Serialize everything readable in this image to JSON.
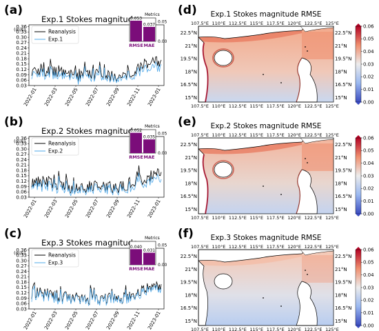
{
  "time_ticks": [
    "2022-01",
    "2022-03",
    "2022-05",
    "2022-07",
    "2022-09",
    "2022-11",
    "2023-01"
  ],
  "y_unit": "(m/s)",
  "y_ticks": [
    0.03,
    0.06,
    0.09,
    0.12,
    0.15,
    0.18,
    0.21,
    0.24,
    0.27,
    0.3,
    0.33,
    0.36
  ],
  "metrics_title": "Metrics",
  "metric_labels": [
    "RMSE",
    "MAE"
  ],
  "inset_ticks": [
    "0.00",
    "0.05"
  ],
  "lon_ticks": [
    "107.5°E",
    "110°E",
    "112.5°E",
    "115°E",
    "117.5°E",
    "120°E",
    "122.5°E",
    "125°E"
  ],
  "lat_ticks": [
    "22.5°N",
    "21°N",
    "19.5°N",
    "18°N",
    "16.5°N",
    "15°N"
  ],
  "colorbar_ticks": [
    "0.06",
    "0.05",
    "0.04",
    "0.03",
    "0.02",
    "0.01",
    "0.00"
  ],
  "colors": {
    "reanalysis": "#000000",
    "experiment": "#4fa8e8",
    "bar": "#7b0d7a",
    "accent_title": "#7b0d7a"
  },
  "chart_data": [
    {
      "panel": "(a)",
      "type": "line",
      "title": "Exp.1 Stokes magnitude",
      "ylabel": "(m/s)",
      "ylim": [
        0.03,
        0.37
      ],
      "x": [
        "2022-01",
        "2022-03",
        "2022-05",
        "2022-07",
        "2022-09",
        "2022-11",
        "2023-01"
      ],
      "series": [
        {
          "name": "Reanalysis",
          "values": [
            0.12,
            0.11,
            0.08,
            0.09,
            0.08,
            0.13,
            0.17
          ]
        },
        {
          "name": "Exp.1",
          "values": [
            0.1,
            0.09,
            0.07,
            0.08,
            0.07,
            0.11,
            0.15
          ]
        }
      ],
      "metrics": {
        "RMSE": 0.053,
        "MAE": 0.037,
        "labels": [
          "0.053",
          "0.037"
        ]
      }
    },
    {
      "panel": "(b)",
      "type": "line",
      "title": "Exp.2 Stokes magnitude",
      "ylabel": "(m/s)",
      "ylim": [
        0.03,
        0.37
      ],
      "x": [
        "2022-01",
        "2022-03",
        "2022-05",
        "2022-07",
        "2022-09",
        "2022-11",
        "2023-01"
      ],
      "series": [
        {
          "name": "Reanalysis",
          "values": [
            0.12,
            0.11,
            0.08,
            0.09,
            0.08,
            0.13,
            0.17
          ]
        },
        {
          "name": "Exp.2",
          "values": [
            0.1,
            0.09,
            0.07,
            0.08,
            0.07,
            0.11,
            0.15
          ]
        }
      ],
      "metrics": {
        "RMSE": 0.052,
        "MAE": 0.035,
        "labels": [
          "0.052",
          "0.035"
        ]
      }
    },
    {
      "panel": "(c)",
      "type": "line",
      "title": "Exp.3 Stokes magnitude",
      "ylabel": "(m/s)",
      "ylim": [
        0.03,
        0.37
      ],
      "x": [
        "2022-01",
        "2022-03",
        "2022-05",
        "2022-07",
        "2022-09",
        "2022-11",
        "2023-01"
      ],
      "series": [
        {
          "name": "Reanalysis",
          "values": [
            0.12,
            0.11,
            0.08,
            0.09,
            0.08,
            0.13,
            0.17
          ]
        },
        {
          "name": "Exp.3",
          "values": [
            0.11,
            0.1,
            0.08,
            0.09,
            0.08,
            0.12,
            0.16
          ]
        }
      ],
      "metrics": {
        "RMSE": 0.04,
        "MAE": 0.031,
        "labels": [
          "0.040",
          "0.031"
        ]
      }
    },
    {
      "panel": "(d)",
      "type": "heatmap",
      "title": "Exp.1 Stokes magnitude RMSE",
      "colorbar_range": [
        0.0,
        0.06
      ]
    },
    {
      "panel": "(e)",
      "type": "heatmap",
      "title": "Exp.2 Stokes magnitude RMSE",
      "colorbar_range": [
        0.0,
        0.06
      ]
    },
    {
      "panel": "(f)",
      "type": "heatmap",
      "title": "Exp.3 Stokes magnitude RMSE",
      "colorbar_range": [
        0.0,
        0.06
      ]
    }
  ]
}
